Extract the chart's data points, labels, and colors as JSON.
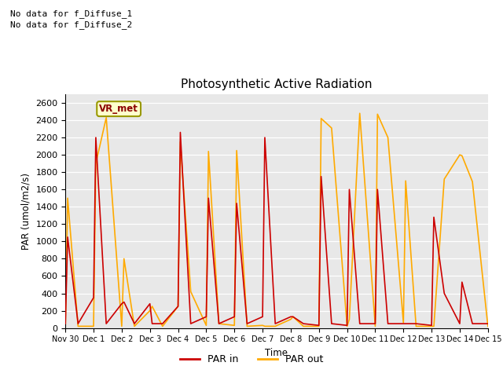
{
  "title": "Photosynthetic Active Radiation",
  "ylabel": "PAR (umol/m2/s)",
  "xlabel": "Time",
  "annotations": [
    "No data for f_Diffuse_1",
    "No data for f_Diffuse_2"
  ],
  "box_label": "VR_met",
  "ylim": [
    0,
    2700
  ],
  "legend_labels": [
    "PAR in",
    "PAR out"
  ],
  "par_in_color": "#cc0000",
  "par_out_color": "#ffaa00",
  "background_color": "#e8e8e8",
  "x_tick_labels": [
    "Nov 30",
    "Dec 1",
    "Dec 2",
    "Dec 3",
    "Dec 4",
    "Dec 5",
    "Dec 6",
    "Dec 7",
    "Dec 8",
    "Dec 9",
    "Dec 10",
    "Dec 11",
    "Dec 12",
    "Dec 13",
    "Dec 14",
    "Dec 15"
  ],
  "par_in_x": [
    0,
    0.08,
    0.45,
    1.0,
    1.08,
    1.45,
    2.0,
    2.08,
    2.45,
    3.0,
    3.08,
    3.45,
    4.0,
    4.08,
    4.45,
    5.0,
    5.08,
    5.45,
    6.0,
    6.08,
    6.45,
    7.0,
    7.08,
    7.45,
    8.0,
    8.08,
    8.45,
    9.0,
    9.08,
    9.45,
    10.0,
    10.08,
    10.45,
    11.0,
    11.08,
    11.45,
    12.0,
    12.08,
    12.45,
    13.0,
    13.08,
    13.45,
    14.0,
    14.08,
    14.45,
    15.0
  ],
  "par_in_y": [
    50,
    1050,
    50,
    350,
    2200,
    50,
    280,
    300,
    50,
    280,
    50,
    50,
    250,
    2260,
    50,
    130,
    1500,
    50,
    130,
    1440,
    50,
    130,
    2200,
    50,
    130,
    130,
    50,
    30,
    1750,
    50,
    30,
    1600,
    50,
    50,
    1600,
    50,
    50,
    50,
    50,
    30,
    1280,
    400,
    50,
    530,
    50,
    50
  ],
  "par_out_x": [
    0,
    0.08,
    0.45,
    1.0,
    1.08,
    1.45,
    2.0,
    2.08,
    2.45,
    3.0,
    3.08,
    3.45,
    4.0,
    4.08,
    4.45,
    5.0,
    5.08,
    5.45,
    6.0,
    6.08,
    6.45,
    7.0,
    7.08,
    7.45,
    8.0,
    8.08,
    8.45,
    9.0,
    9.08,
    9.45,
    10.0,
    10.08,
    10.45,
    11.0,
    11.08,
    11.45,
    12.0,
    12.08,
    12.45,
    13.0,
    13.08,
    13.45,
    14.0,
    14.08,
    14.45,
    15.0
  ],
  "par_out_y": [
    20,
    1500,
    20,
    20,
    1900,
    2430,
    20,
    800,
    20,
    200,
    250,
    20,
    250,
    2150,
    420,
    30,
    2040,
    50,
    30,
    2050,
    20,
    30,
    20,
    20,
    100,
    130,
    20,
    20,
    2420,
    2310,
    20,
    100,
    2480,
    20,
    2470,
    2200,
    60,
    1700,
    20,
    20,
    20,
    1720,
    2000,
    1990,
    1690,
    20
  ]
}
